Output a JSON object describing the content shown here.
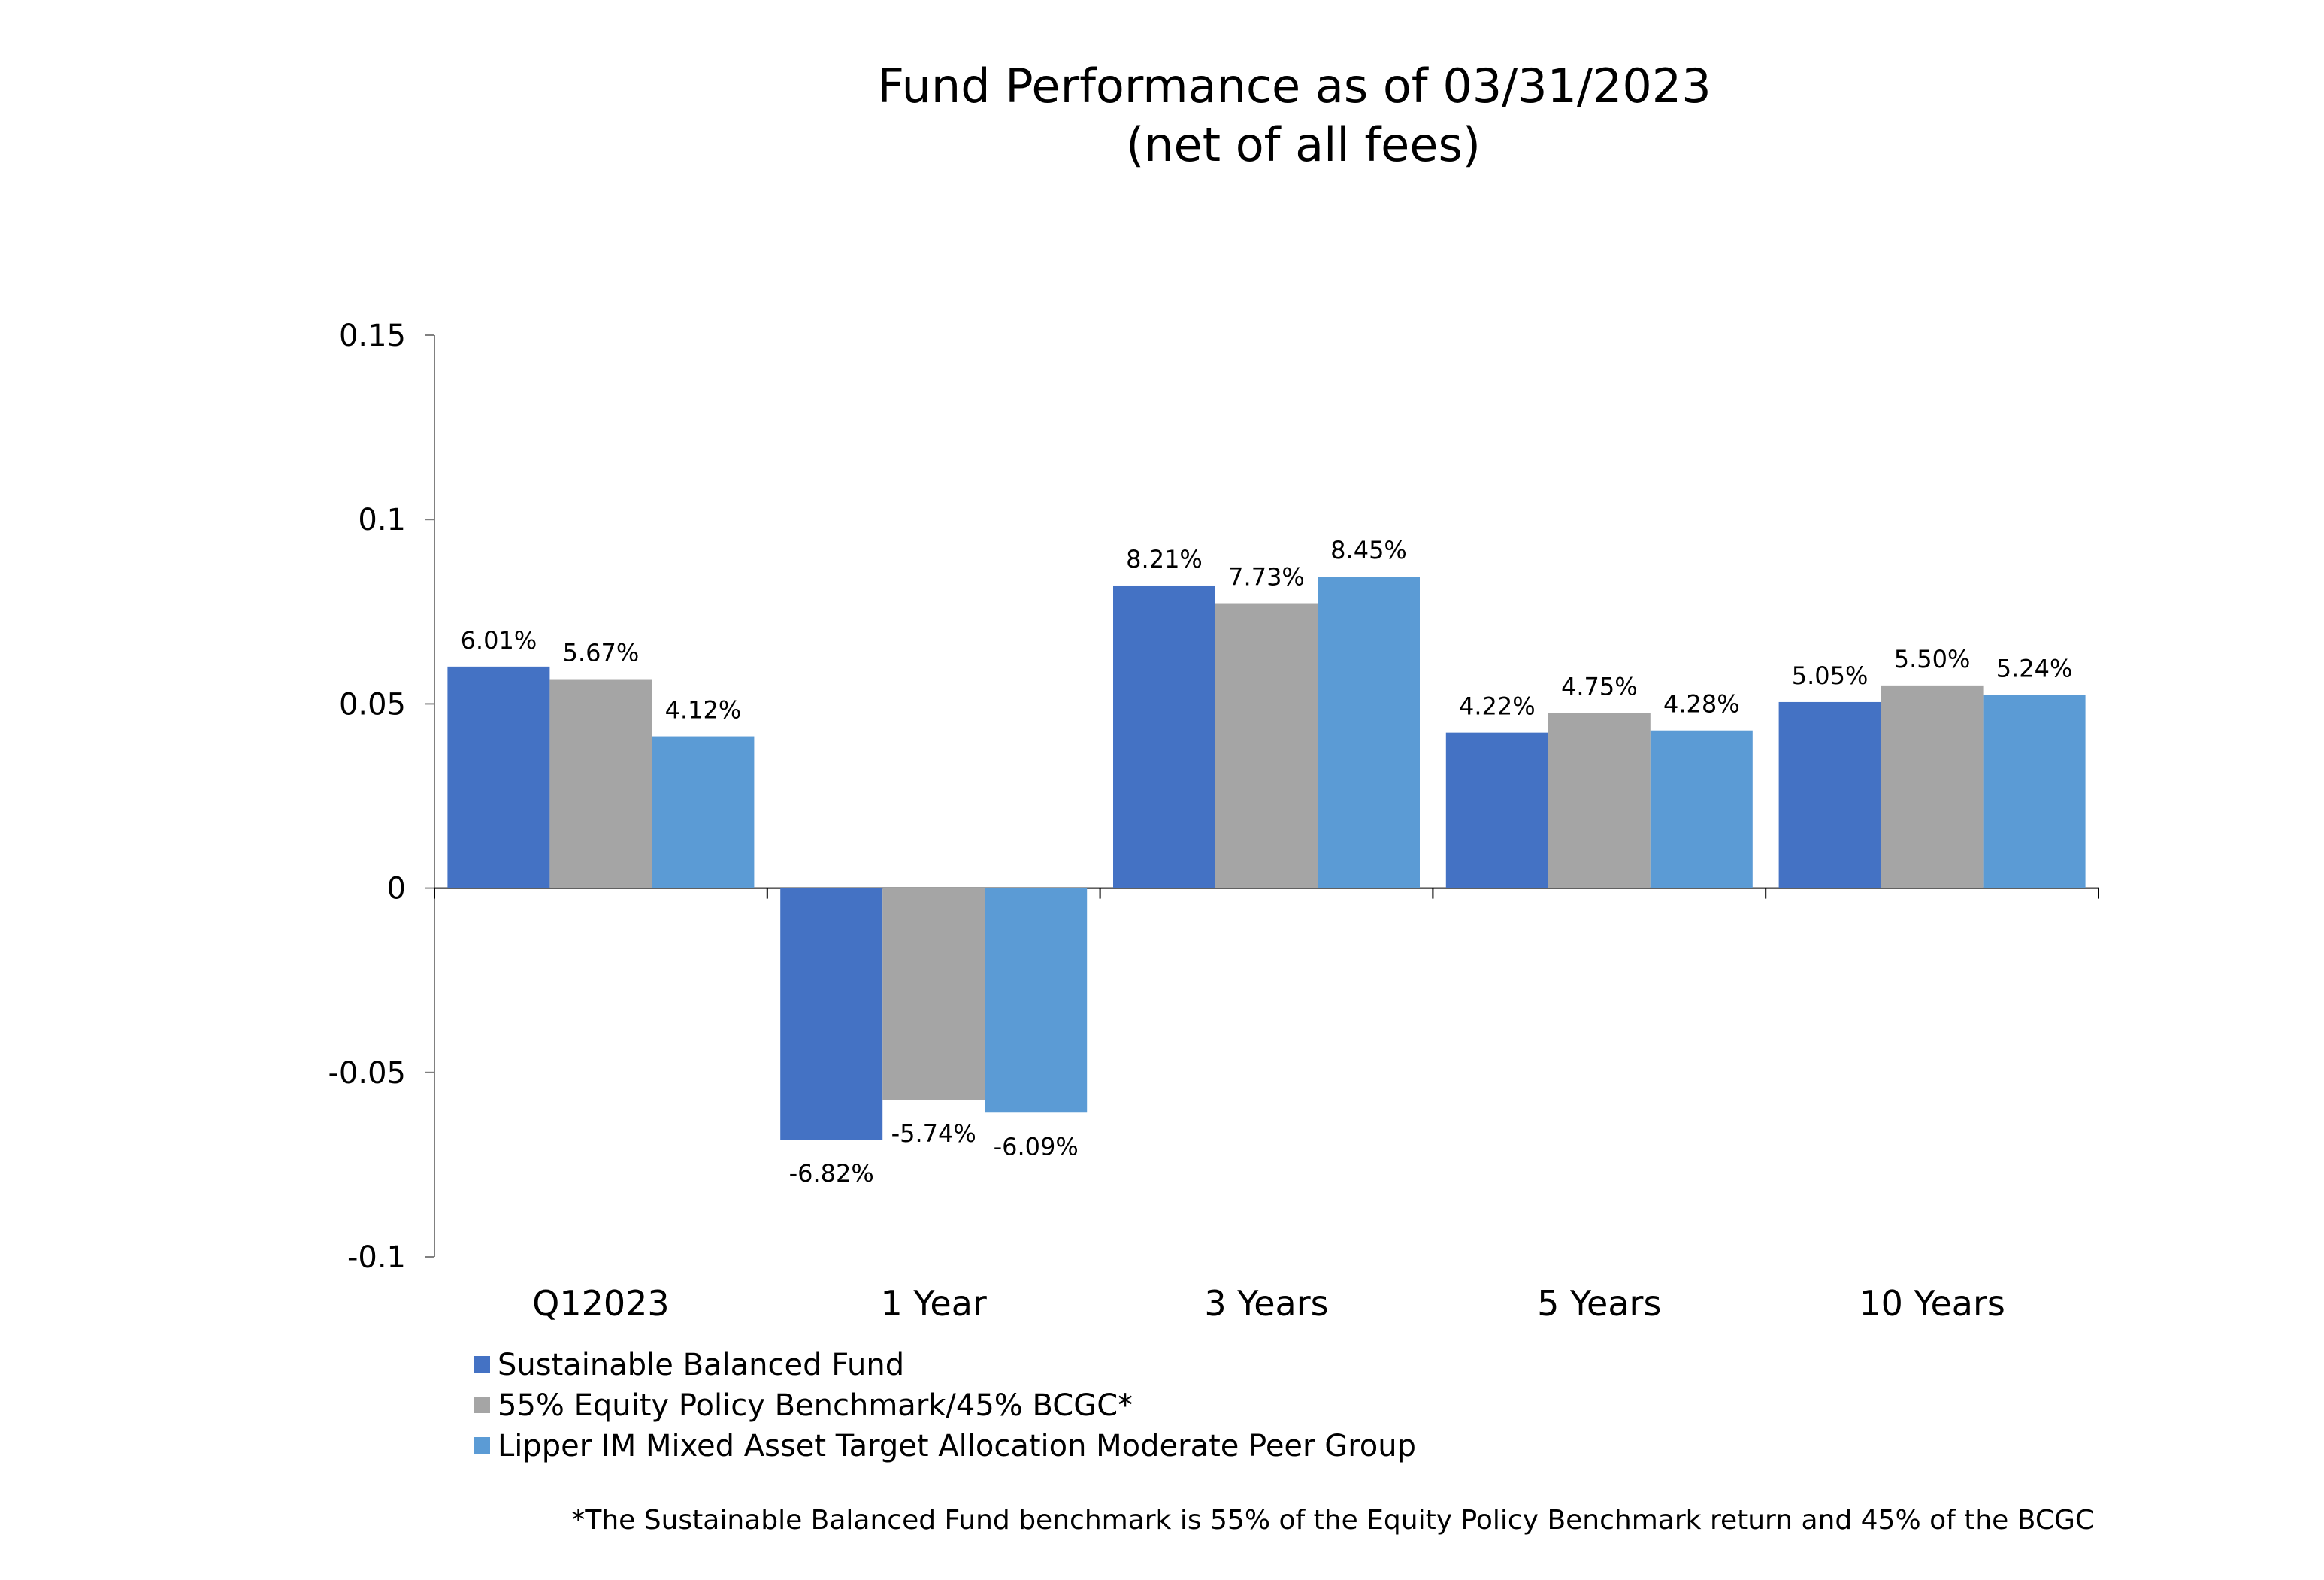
{
  "chart_data": {
    "type": "bar",
    "title": "Fund Performance as of  03/31/2023",
    "subtitle": "(net of all fees)",
    "categories": [
      "Q12023",
      "1 Year",
      "3 Years",
      "5 Years",
      "10 Years"
    ],
    "series": [
      {
        "name": "Sustainable Balanced Fund",
        "color": "#4472c4",
        "values": [
          0.0601,
          -0.0682,
          0.0821,
          0.0422,
          0.0505
        ],
        "labels": [
          "6.01%",
          "-6.82%",
          "8.21%",
          "4.22%",
          "5.05%"
        ]
      },
      {
        "name": "55% Equity Policy Benchmark/45% BCGC*",
        "color": "#a5a5a5",
        "values": [
          0.0567,
          -0.0574,
          0.0773,
          0.0475,
          0.055
        ],
        "labels": [
          "5.67%",
          "-5.74%",
          "7.73%",
          "4.75%",
          "5.50%"
        ]
      },
      {
        "name": "Lipper IM Mixed Asset Target Allocation Moderate Peer Group",
        "color": "#5b9bd5",
        "values": [
          0.0412,
          -0.0609,
          0.0845,
          0.0428,
          0.0524
        ],
        "labels": [
          "4.12%",
          "-6.09%",
          "8.45%",
          "4.28%",
          "5.24%"
        ]
      }
    ],
    "yticks": [
      "0.15",
      "0.1",
      "0.05",
      "0",
      "-0.05",
      "-0.1"
    ],
    "ylim": [
      -0.1,
      0.15
    ],
    "grid": false,
    "legend_position": "bottom-left",
    "footnote": "*The Sustainable Balanced Fund benchmark is 55% of the Equity Policy Benchmark return and 45% of the BCGC"
  }
}
